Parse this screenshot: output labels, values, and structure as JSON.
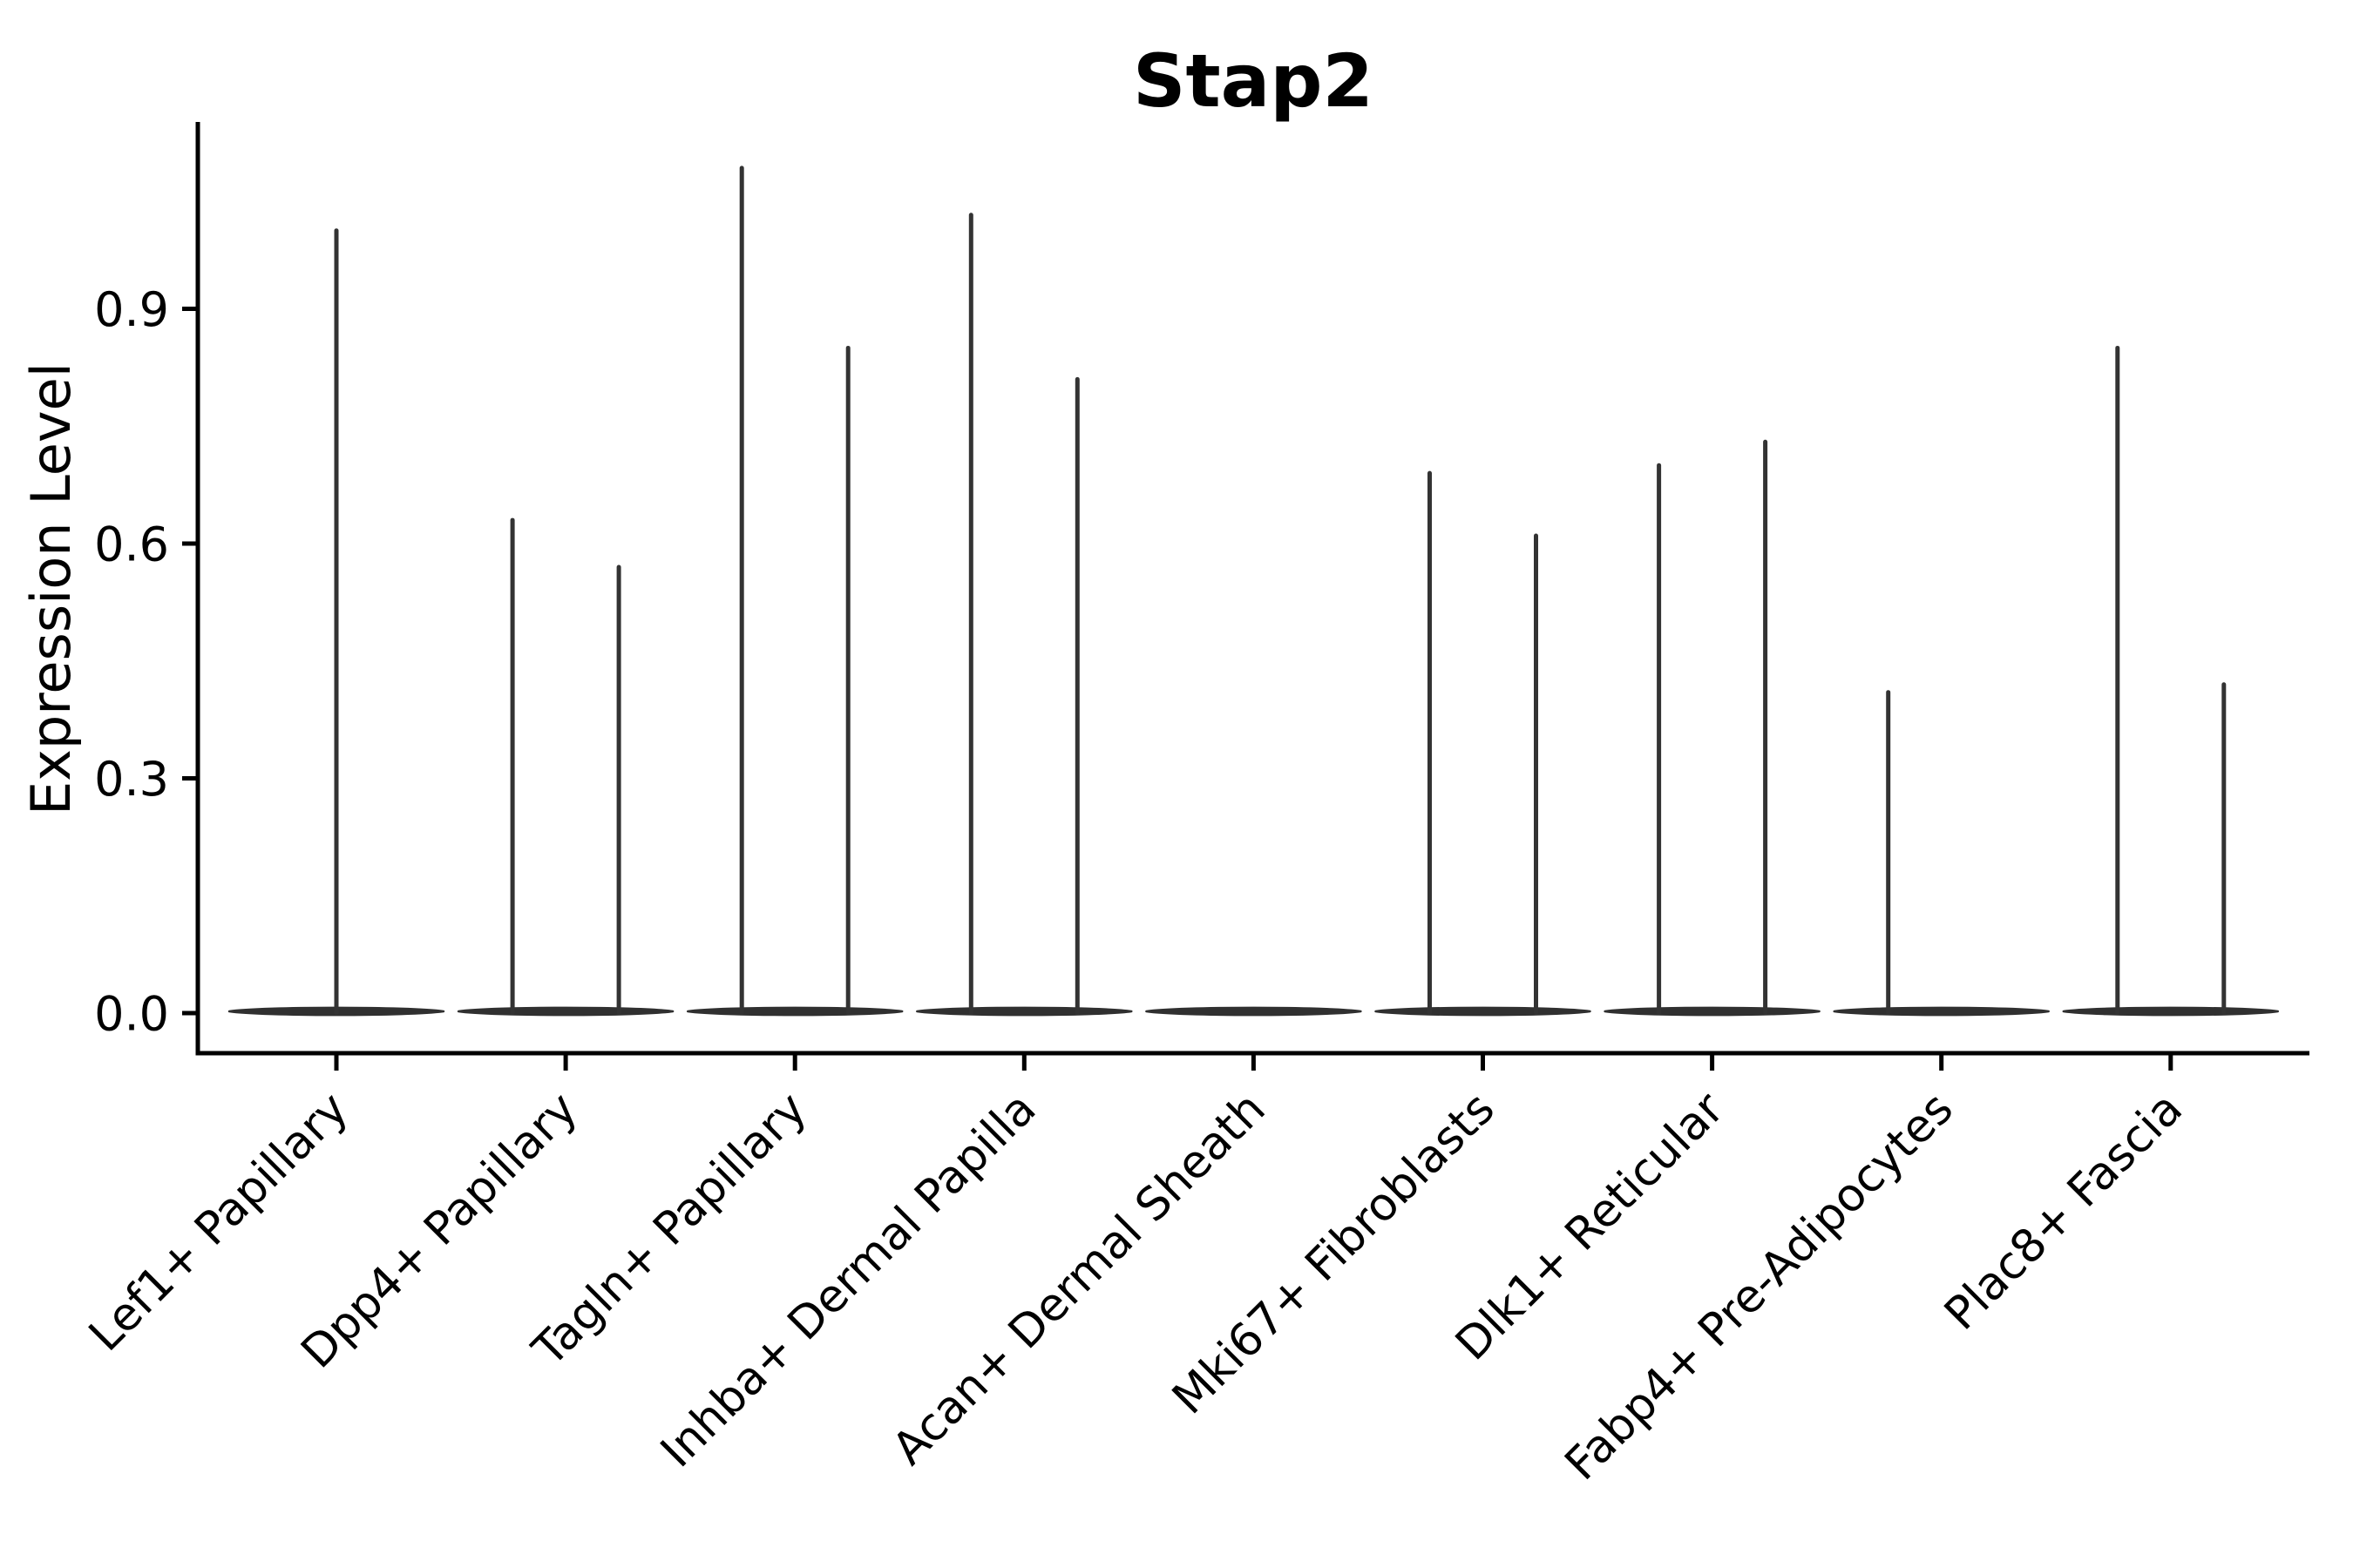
{
  "chart_data": {
    "type": "violin",
    "title": "Stap2",
    "ylabel": "Expression Level",
    "xlabel": "",
    "y_ticks": [
      0.0,
      0.3,
      0.6,
      0.9
    ],
    "ylim": [
      -0.05,
      1.14
    ],
    "grid": false,
    "legend": "none",
    "baseline_value": 0.0,
    "categories": [
      "Lef1+ Papillary",
      "Dpp4+ Papillary",
      "Tagln+ Papillary",
      "Inhba+ Dermal Papilla",
      "Acan+ Dermal Sheath",
      "Mki67+ Fibroblasts",
      "Dlk1+ Reticular",
      "Fabp4+ Pre-Adipocytes",
      "Plac8+ Fascia"
    ],
    "series": [
      {
        "category": "Lef1+ Papillary",
        "spikes": [
          {
            "position": "center",
            "max": 1.0
          }
        ]
      },
      {
        "category": "Dpp4+ Papillary",
        "spikes": [
          {
            "position": "left",
            "max": 0.63
          },
          {
            "position": "right",
            "max": 0.57
          }
        ]
      },
      {
        "category": "Tagln+ Papillary",
        "spikes": [
          {
            "position": "left",
            "max": 1.08
          },
          {
            "position": "right",
            "max": 0.85
          }
        ]
      },
      {
        "category": "Inhba+ Dermal Papilla",
        "spikes": [
          {
            "position": "left",
            "max": 1.02
          },
          {
            "position": "right",
            "max": 0.81
          }
        ]
      },
      {
        "category": "Acan+ Dermal Sheath",
        "spikes": []
      },
      {
        "category": "Mki67+ Fibroblasts",
        "spikes": [
          {
            "position": "left",
            "max": 0.69
          },
          {
            "position": "right",
            "max": 0.61
          }
        ]
      },
      {
        "category": "Dlk1+ Reticular",
        "spikes": [
          {
            "position": "left",
            "max": 0.7
          },
          {
            "position": "right",
            "max": 0.73
          }
        ]
      },
      {
        "category": "Fabp4+ Pre-Adipocytes",
        "spikes": [
          {
            "position": "left",
            "max": 0.41
          }
        ]
      },
      {
        "category": "Plac8+ Fascia",
        "spikes": [
          {
            "position": "left",
            "max": 0.85
          },
          {
            "position": "right",
            "max": 0.42
          }
        ]
      }
    ],
    "colors": {
      "violin": "#333333",
      "violin_base": "#303030",
      "axis": "#000000",
      "text": "#000000",
      "background": "#ffffff"
    }
  }
}
